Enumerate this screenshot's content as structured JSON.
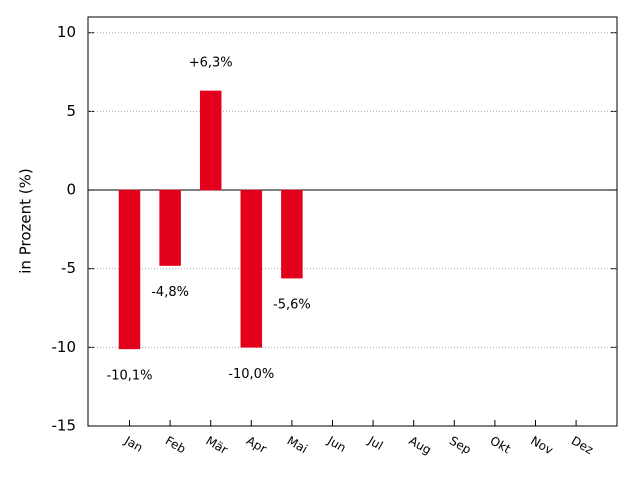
{
  "chart_data": {
    "type": "bar",
    "y_label": "in Prozent (%)",
    "categories": [
      "Jan",
      "Feb",
      "Mär",
      "Apr",
      "Mai",
      "Jun",
      "Jul",
      "Aug",
      "Sep",
      "Okt",
      "Nov",
      "Dez"
    ],
    "values": [
      -10.1,
      -4.8,
      6.3,
      -10.0,
      -5.6,
      0,
      0,
      0,
      0,
      0,
      0,
      0
    ],
    "value_labels": [
      "-10,1%",
      "-4,8%",
      "+6,3%",
      "-10,0%",
      "-5,6%",
      null,
      null,
      null,
      null,
      null,
      null,
      null
    ],
    "color": "#e2001a",
    "ylim": [
      -15,
      11
    ],
    "yticks": [
      -15,
      -10,
      -5,
      0,
      5,
      10
    ],
    "grid": true
  }
}
